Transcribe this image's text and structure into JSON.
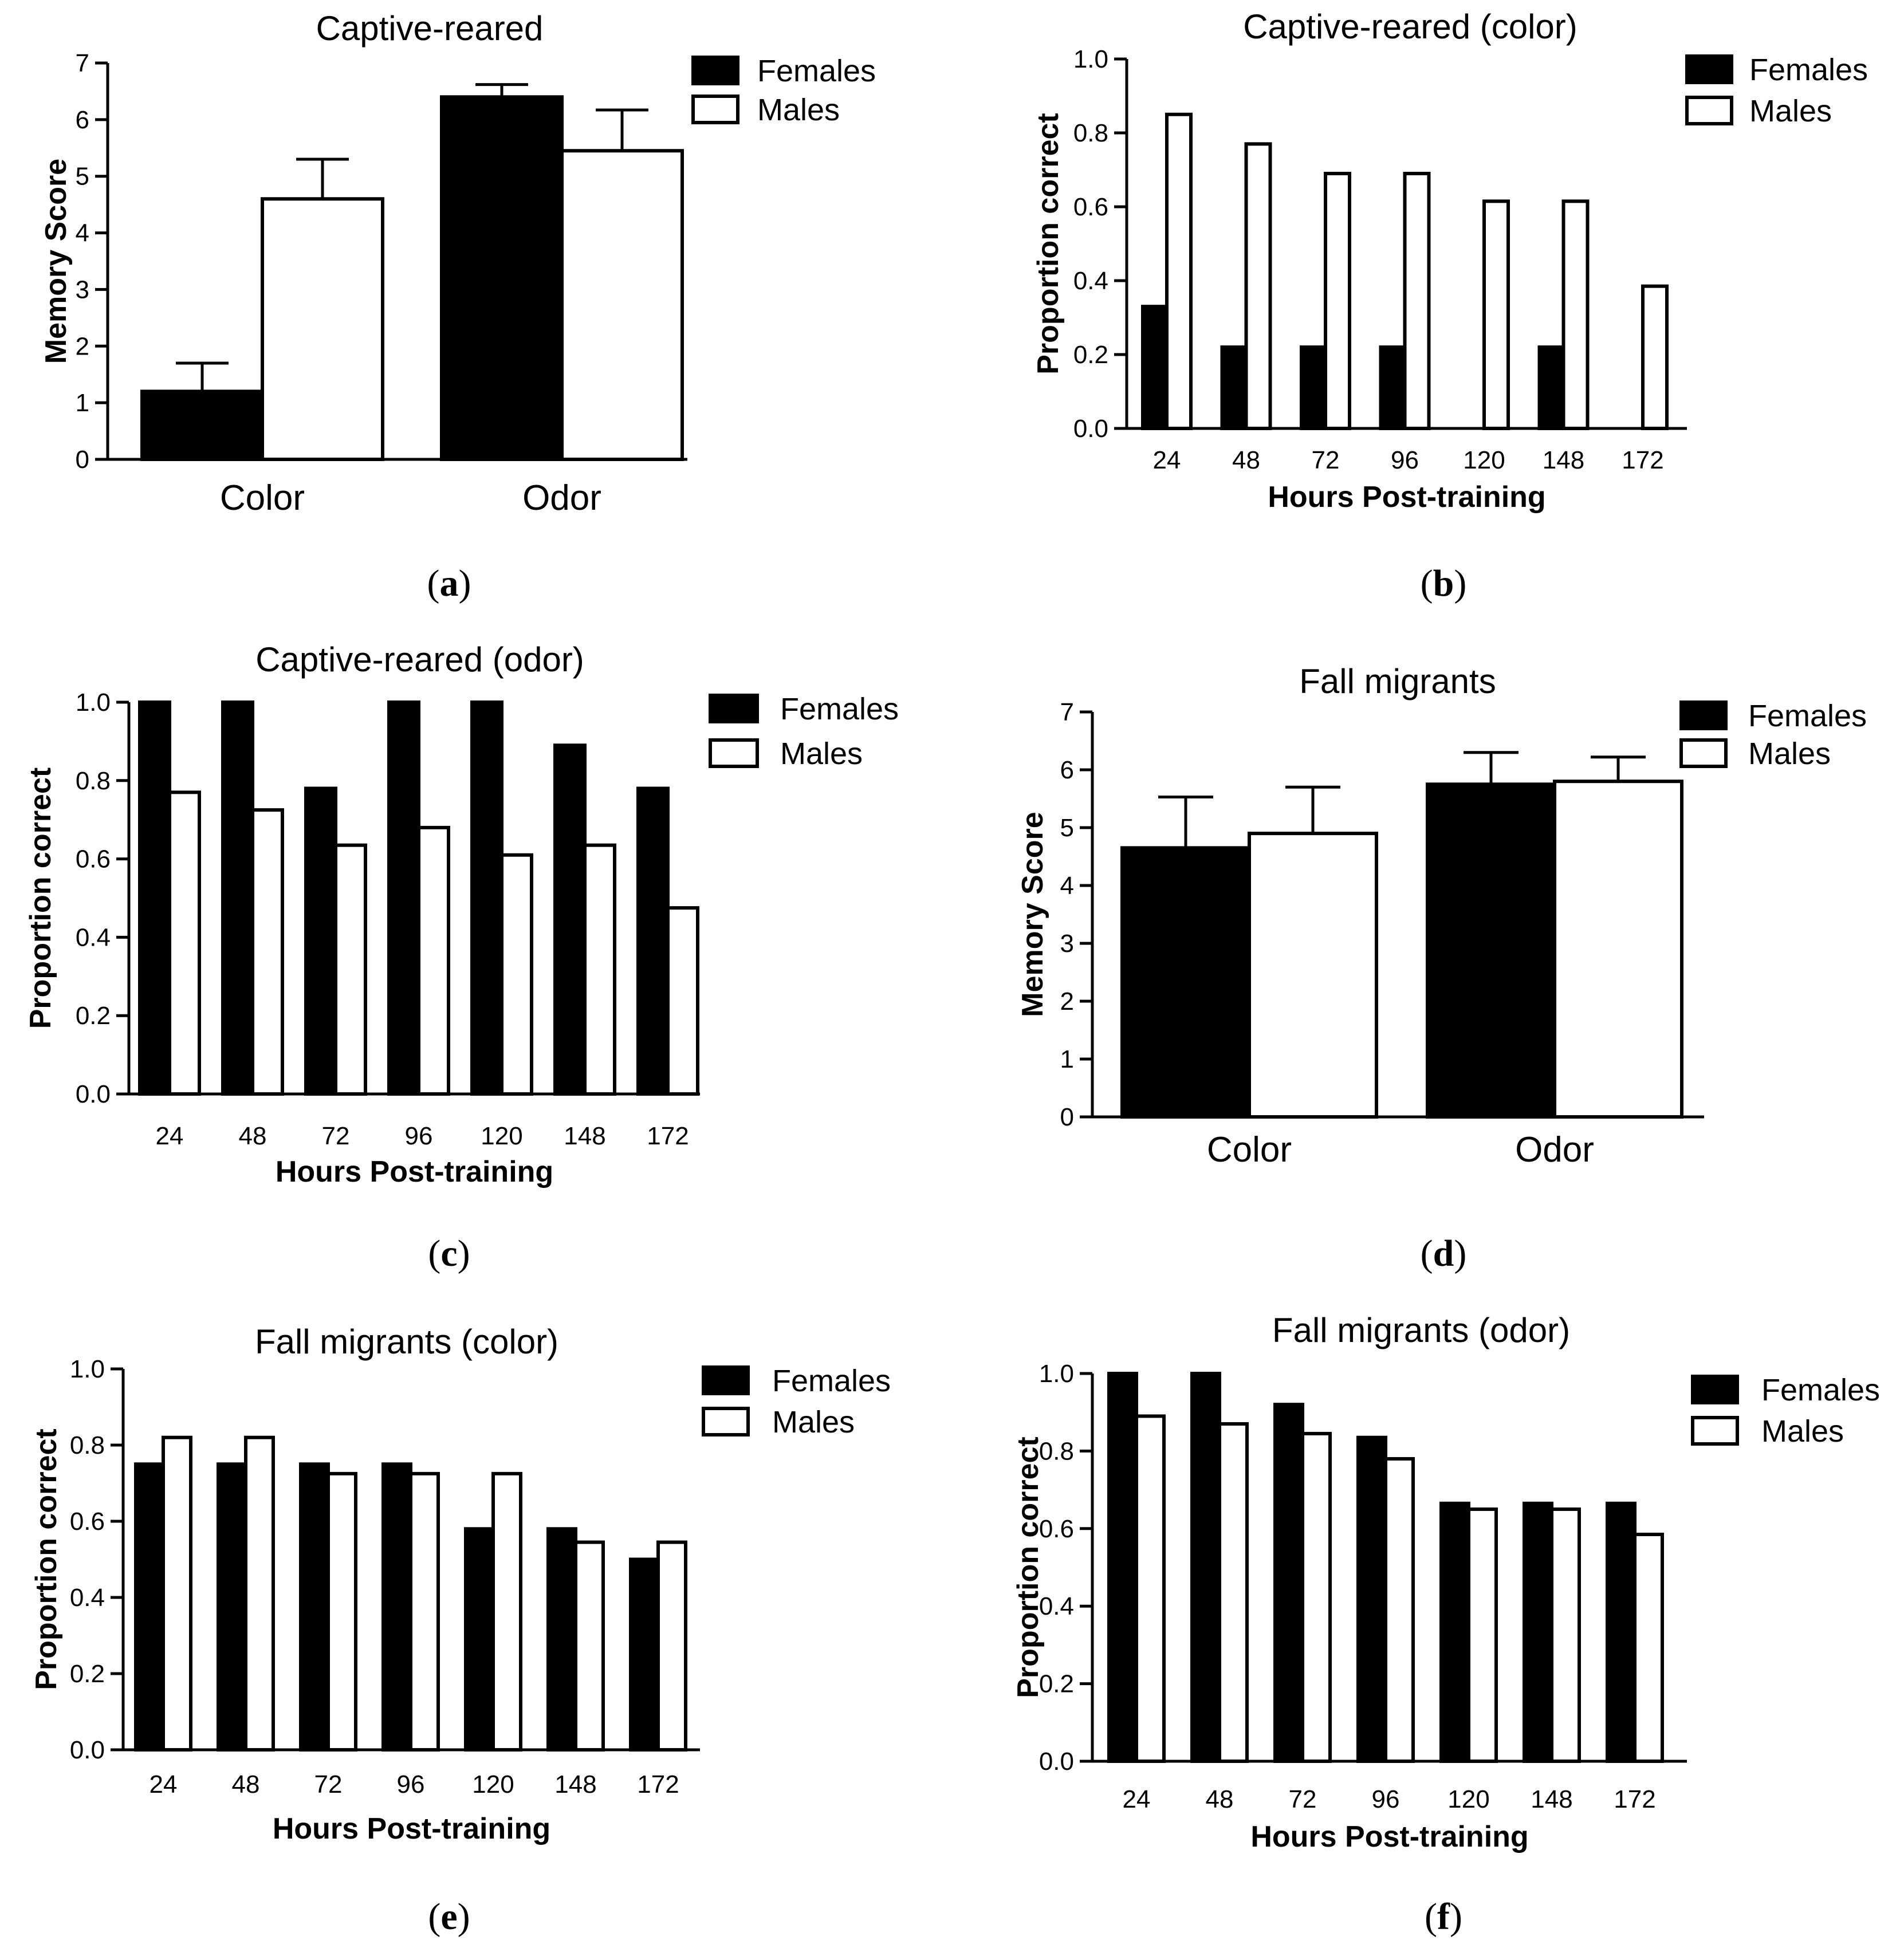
{
  "colors": {
    "females": "#000000",
    "males": "#ffffff",
    "stroke": "#000000"
  },
  "chart_data": [
    {
      "id": "a",
      "type": "bar",
      "panel_label": "a",
      "title": "Captive-reared",
      "xlabel": "",
      "ylabel": "Memory Score",
      "ylim": [
        0,
        7
      ],
      "yticks": [
        "0",
        "1",
        "2",
        "3",
        "4",
        "5",
        "6",
        "7"
      ],
      "categories": [
        "Color",
        "Odor"
      ],
      "series": [
        {
          "name": "Females",
          "values": [
            1.2,
            6.4
          ],
          "errors": [
            0.5,
            0.22
          ]
        },
        {
          "name": "Males",
          "values": [
            4.6,
            5.45
          ],
          "errors": [
            0.7,
            0.72
          ]
        }
      ],
      "legend": [
        "Females",
        "Males"
      ],
      "legend_position": "top-right",
      "grid": false
    },
    {
      "id": "b",
      "type": "bar",
      "panel_label": "b",
      "title": "Captive-reared (color)",
      "xlabel": "Hours Post-training",
      "ylabel": "Proportion correct",
      "ylim": [
        0,
        1.0
      ],
      "yticks": [
        "0.0",
        "0.2",
        "0.4",
        "0.6",
        "0.8",
        "1.0"
      ],
      "categories": [
        "24",
        "48",
        "72",
        "96",
        "120",
        "148",
        "172"
      ],
      "series": [
        {
          "name": "Females",
          "values": [
            0.33,
            0.22,
            0.22,
            0.22,
            0.0,
            0.22,
            0.0
          ]
        },
        {
          "name": "Males",
          "values": [
            0.85,
            0.77,
            0.69,
            0.69,
            0.615,
            0.615,
            0.385
          ]
        }
      ],
      "legend": [
        "Females",
        "Males"
      ],
      "legend_position": "top-right",
      "grid": false
    },
    {
      "id": "c",
      "type": "bar",
      "panel_label": "c",
      "title": "Captive-reared (odor)",
      "xlabel": "Hours Post-training",
      "ylabel": "Proportion correct",
      "ylim": [
        0,
        1.0
      ],
      "yticks": [
        "0.0",
        "0.2",
        "0.4",
        "0.6",
        "0.8",
        "1.0"
      ],
      "categories": [
        "24",
        "48",
        "72",
        "96",
        "120",
        "148",
        "172"
      ],
      "series": [
        {
          "name": "Females",
          "values": [
            1.0,
            1.0,
            0.78,
            1.0,
            1.0,
            0.89,
            0.78
          ]
        },
        {
          "name": "Males",
          "values": [
            0.77,
            0.725,
            0.635,
            0.68,
            0.61,
            0.635,
            0.475
          ]
        }
      ],
      "legend": [
        "Females",
        "Males"
      ],
      "legend_position": "top-right",
      "grid": false
    },
    {
      "id": "d",
      "type": "bar",
      "panel_label": "d",
      "title": "Fall migrants",
      "xlabel": "",
      "ylabel": "Memory Score",
      "ylim": [
        0,
        7
      ],
      "yticks": [
        "0",
        "1",
        "2",
        "3",
        "4",
        "5",
        "6",
        "7"
      ],
      "categories": [
        "Color",
        "Odor"
      ],
      "series": [
        {
          "name": "Females",
          "values": [
            4.65,
            5.75
          ],
          "errors": [
            0.88,
            0.55
          ]
        },
        {
          "name": "Males",
          "values": [
            4.9,
            5.8
          ],
          "errors": [
            0.8,
            0.42
          ]
        }
      ],
      "legend": [
        "Females",
        "Males"
      ],
      "legend_position": "top-right",
      "grid": false
    },
    {
      "id": "e",
      "type": "bar",
      "panel_label": "e",
      "title": "Fall migrants (color)",
      "xlabel": "Hours Post-training",
      "ylabel": "Proportion correct",
      "ylim": [
        0,
        1.0
      ],
      "yticks": [
        "0.0",
        "0.2",
        "0.4",
        "0.6",
        "0.8",
        "1.0"
      ],
      "categories": [
        "24",
        "48",
        "72",
        "96",
        "120",
        "148",
        "172"
      ],
      "series": [
        {
          "name": "Females",
          "values": [
            0.75,
            0.75,
            0.75,
            0.75,
            0.58,
            0.58,
            0.5
          ]
        },
        {
          "name": "Males",
          "values": [
            0.82,
            0.82,
            0.725,
            0.725,
            0.725,
            0.545,
            0.545
          ]
        }
      ],
      "legend": [
        "Females",
        "Males"
      ],
      "legend_position": "top-right",
      "grid": false
    },
    {
      "id": "f",
      "type": "bar",
      "panel_label": "f",
      "title": "Fall migrants (odor)",
      "xlabel": "Hours Post-training",
      "ylabel": "Proportion correct",
      "ylim": [
        0,
        1.0
      ],
      "yticks": [
        "0.0",
        "0.2",
        "0.4",
        "0.6",
        "0.8",
        "1.0"
      ],
      "categories": [
        "24",
        "48",
        "72",
        "96",
        "120",
        "148",
        "172"
      ],
      "series": [
        {
          "name": "Females",
          "values": [
            1.0,
            1.0,
            0.92,
            0.835,
            0.665,
            0.665,
            0.665
          ]
        },
        {
          "name": "Males",
          "values": [
            0.89,
            0.87,
            0.845,
            0.78,
            0.65,
            0.65,
            0.585
          ]
        }
      ],
      "legend": [
        "Females",
        "Males"
      ],
      "legend_position": "top-right",
      "grid": false
    }
  ]
}
